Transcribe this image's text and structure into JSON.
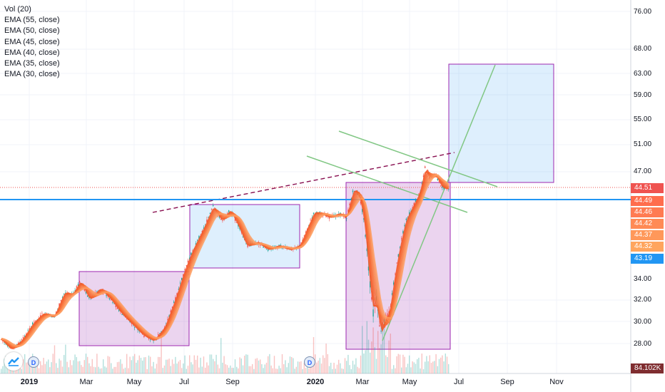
{
  "legend": [
    "Vol (20)",
    "EMA (55, close)",
    "EMA (50, close)",
    "EMA (45, close)",
    "EMA (40, close)",
    "EMA (35, close)",
    "EMA (30, close)"
  ],
  "price_axis": [
    "76.00",
    "68.00",
    "63.00",
    "59.00",
    "55.00",
    "51.00",
    "47.00",
    "34.00",
    "32.00",
    "30.00",
    "28.00"
  ],
  "price_badges": [
    {
      "text": "44.51",
      "color": "#ef5350"
    },
    {
      "text": "44.49",
      "color": "#ff6d4d"
    },
    {
      "text": "44.46",
      "color": "#ff7b52"
    },
    {
      "text": "44.42",
      "color": "#ff8a55"
    },
    {
      "text": "44.37",
      "color": "#ff985a"
    },
    {
      "text": "44.32",
      "color": "#ffa55e"
    },
    {
      "text": "43.19",
      "color": "#2196f3"
    },
    {
      "text": "84.102K",
      "color": "#7f2d30"
    }
  ],
  "time_axis": [
    {
      "text": "2019",
      "bold": true
    },
    {
      "text": "Mar",
      "bold": false
    },
    {
      "text": "May",
      "bold": false
    },
    {
      "text": "Jul",
      "bold": false
    },
    {
      "text": "Sep",
      "bold": false
    },
    {
      "text": "2020",
      "bold": true
    },
    {
      "text": "Mar",
      "bold": false
    },
    {
      "text": "May",
      "bold": false
    },
    {
      "text": "Jul",
      "bold": false
    },
    {
      "text": "Sep",
      "bold": false
    },
    {
      "text": "Nov",
      "bold": false
    }
  ],
  "dividend_markers": [
    "D",
    "D"
  ],
  "colors": {
    "horizontal_line": "#2196f3",
    "ema_band": "#f15a24",
    "box_purple": "#9c27b0",
    "box_blue": "#2196f3",
    "trendline": "#81c784",
    "dashed_trend": "#880e4f"
  }
}
